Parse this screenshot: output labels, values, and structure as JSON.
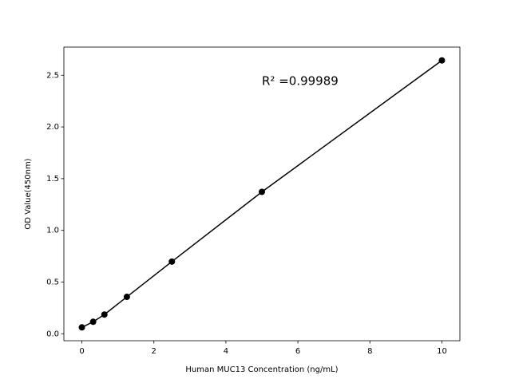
{
  "chart_data": {
    "type": "line",
    "x_label": "Human MUC13 Concentration (ng/mL)",
    "y_label": "OD Value(450nm)",
    "annotation": "R² =0.99989",
    "x": [
      0,
      0.3125,
      0.625,
      1.25,
      2.5,
      5,
      10
    ],
    "series": [
      {
        "color": "#000000",
        "values": [
          0.062,
          0.116,
          0.186,
          0.357,
          0.698,
          1.372,
          2.643
        ]
      }
    ],
    "xlim": [
      -0.5,
      10.5
    ],
    "xticks": [
      0,
      2,
      4,
      6,
      8,
      10
    ],
    "ylim": [
      -0.067,
      2.772
    ],
    "yticks": [
      {
        "value": 0,
        "label": "0.0"
      },
      {
        "value": 0.5,
        "label": "0.5"
      },
      {
        "value": 1,
        "label": "1.0"
      },
      {
        "value": 1.5,
        "label": "1.5"
      },
      {
        "value": 2,
        "label": "2.0"
      },
      {
        "value": 2.5,
        "label": "2.5"
      }
    ]
  }
}
